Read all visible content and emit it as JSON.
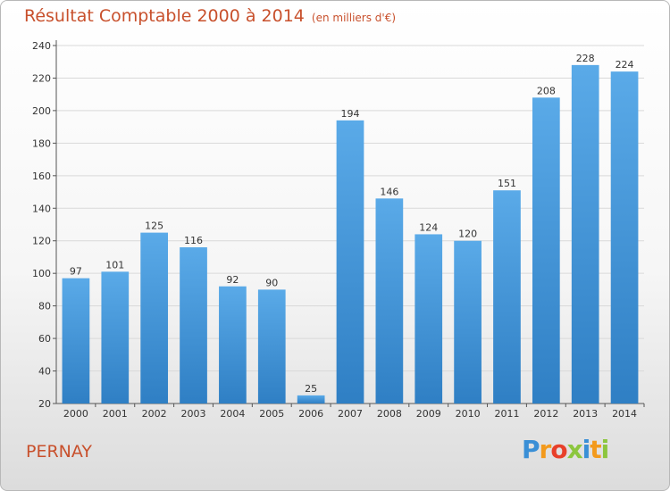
{
  "header": {
    "title": "Résultat Comptable 2000 à 2014",
    "unit": "(en milliers d'€)"
  },
  "footer": {
    "commune": "PERNAY",
    "logo_text": "Proxiti"
  },
  "colors": {
    "bar_light": "#5aaae8",
    "bar_dark": "#2f7fc4",
    "title": "#c8502c",
    "grid": "#d9d9d9"
  },
  "chart_data": {
    "type": "bar",
    "title": "Résultat Comptable 2000 à 2014",
    "subtitle": "(en milliers d'€)",
    "xlabel": "",
    "ylabel": "",
    "categories": [
      "2000",
      "2001",
      "2002",
      "2003",
      "2004",
      "2005",
      "2006",
      "2007",
      "2008",
      "2009",
      "2010",
      "2011",
      "2012",
      "2013",
      "2014"
    ],
    "values": [
      97,
      101,
      125,
      116,
      92,
      90,
      25,
      194,
      146,
      124,
      120,
      151,
      208,
      228,
      224
    ],
    "ylim": [
      20,
      240
    ],
    "yticks": [
      20,
      40,
      60,
      80,
      100,
      120,
      140,
      160,
      180,
      200,
      220,
      240
    ],
    "grid": true,
    "data_labels": true
  }
}
